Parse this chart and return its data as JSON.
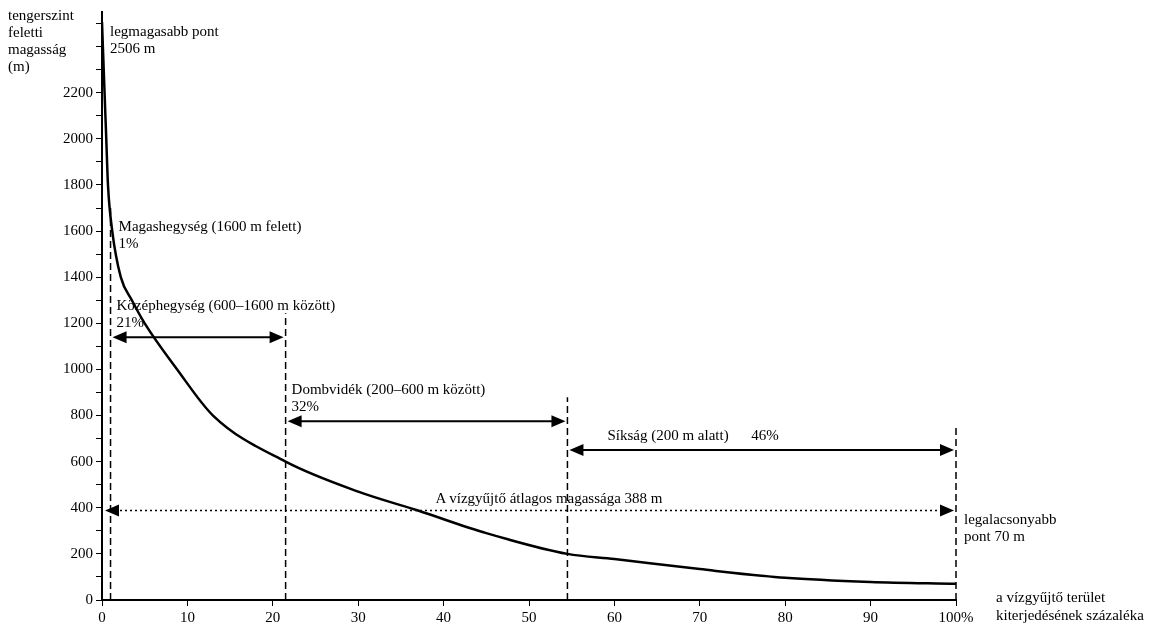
{
  "chart_data": {
    "type": "line",
    "xlabel": "a vízgyűjtő terület kiterjedésének százaléka",
    "ylabel": "tengerszint feletti magasság (m)",
    "series": [
      {
        "color": "#000000",
        "x": [
          0,
          0.3,
          0.5,
          0.7,
          1.2,
          2.2,
          3.5,
          5,
          8.8,
          13,
          21.5,
          30,
          37,
          45,
          54.5,
          60,
          70,
          80,
          90,
          100
        ],
        "values": [
          2506,
          2200,
          2000,
          1800,
          1600,
          1400,
          1300,
          1200,
          1000,
          800,
          600,
          470,
          388,
          290,
          200,
          178,
          134,
          96,
          78,
          70
        ]
      }
    ],
    "xlim": [
      0,
      100
    ],
    "ylim": [
      0,
      2550
    ],
    "xticks": [
      0,
      10,
      20,
      30,
      40,
      50,
      60,
      70,
      80,
      90,
      {
        "value": 100,
        "label": "100%"
      }
    ],
    "yticks": [
      0,
      {
        "value": 100,
        "label": null
      },
      200,
      {
        "value": 300,
        "label": null
      },
      400,
      {
        "value": 500,
        "label": null
      },
      600,
      {
        "value": 700,
        "label": null
      },
      800,
      {
        "value": 900,
        "label": null
      },
      1000,
      {
        "value": 1100,
        "label": null
      },
      1200,
      {
        "value": 1300,
        "label": null
      },
      1400,
      {
        "value": 1500,
        "label": null
      },
      1600,
      {
        "value": 1700,
        "label": null
      },
      1800,
      {
        "value": 1900,
        "label": null
      },
      2000,
      {
        "value": 2100,
        "label": null
      },
      2200,
      {
        "value": 2300,
        "label": null
      },
      {
        "value": 2400,
        "label": null
      },
      {
        "value": 2500,
        "label": null
      }
    ],
    "grid": false,
    "legend": false,
    "marker": "none",
    "line_style": "solid",
    "ref_lines": [
      {
        "axis": "x",
        "value": 1,
        "line_style": "dashed"
      },
      {
        "axis": "x",
        "value": 21.5,
        "line_style": "dashed"
      },
      {
        "axis": "x",
        "value": 54.5,
        "line_style": "dashed"
      },
      {
        "axis": "x",
        "value": 100,
        "line_style": "dashed"
      },
      {
        "axis": "y",
        "value": 388,
        "label": "A vízgyűjtő átlagos magassága 388 m",
        "line_style": "dotted"
      }
    ],
    "annotations": [
      {
        "text": "legmagasabb pont 2506 m",
        "x": 0,
        "y": 2506
      },
      {
        "text": "Magashegység (1600 m felett)\n1%",
        "x": 1,
        "y": 1600
      },
      {
        "text": "Középhegység (600–1600 m között)\n21%",
        "x": 1,
        "y": 1140
      },
      {
        "text": "Dombvidék (200–600 m között)\n32%",
        "x": 21.5,
        "y": 775
      },
      {
        "text": "Síkság (200 m alatt)      46%",
        "x": 54.5,
        "y": 650
      },
      {
        "text": "legalacsonyabb pont 70 m",
        "x": 100,
        "y": 70
      }
    ]
  }
}
